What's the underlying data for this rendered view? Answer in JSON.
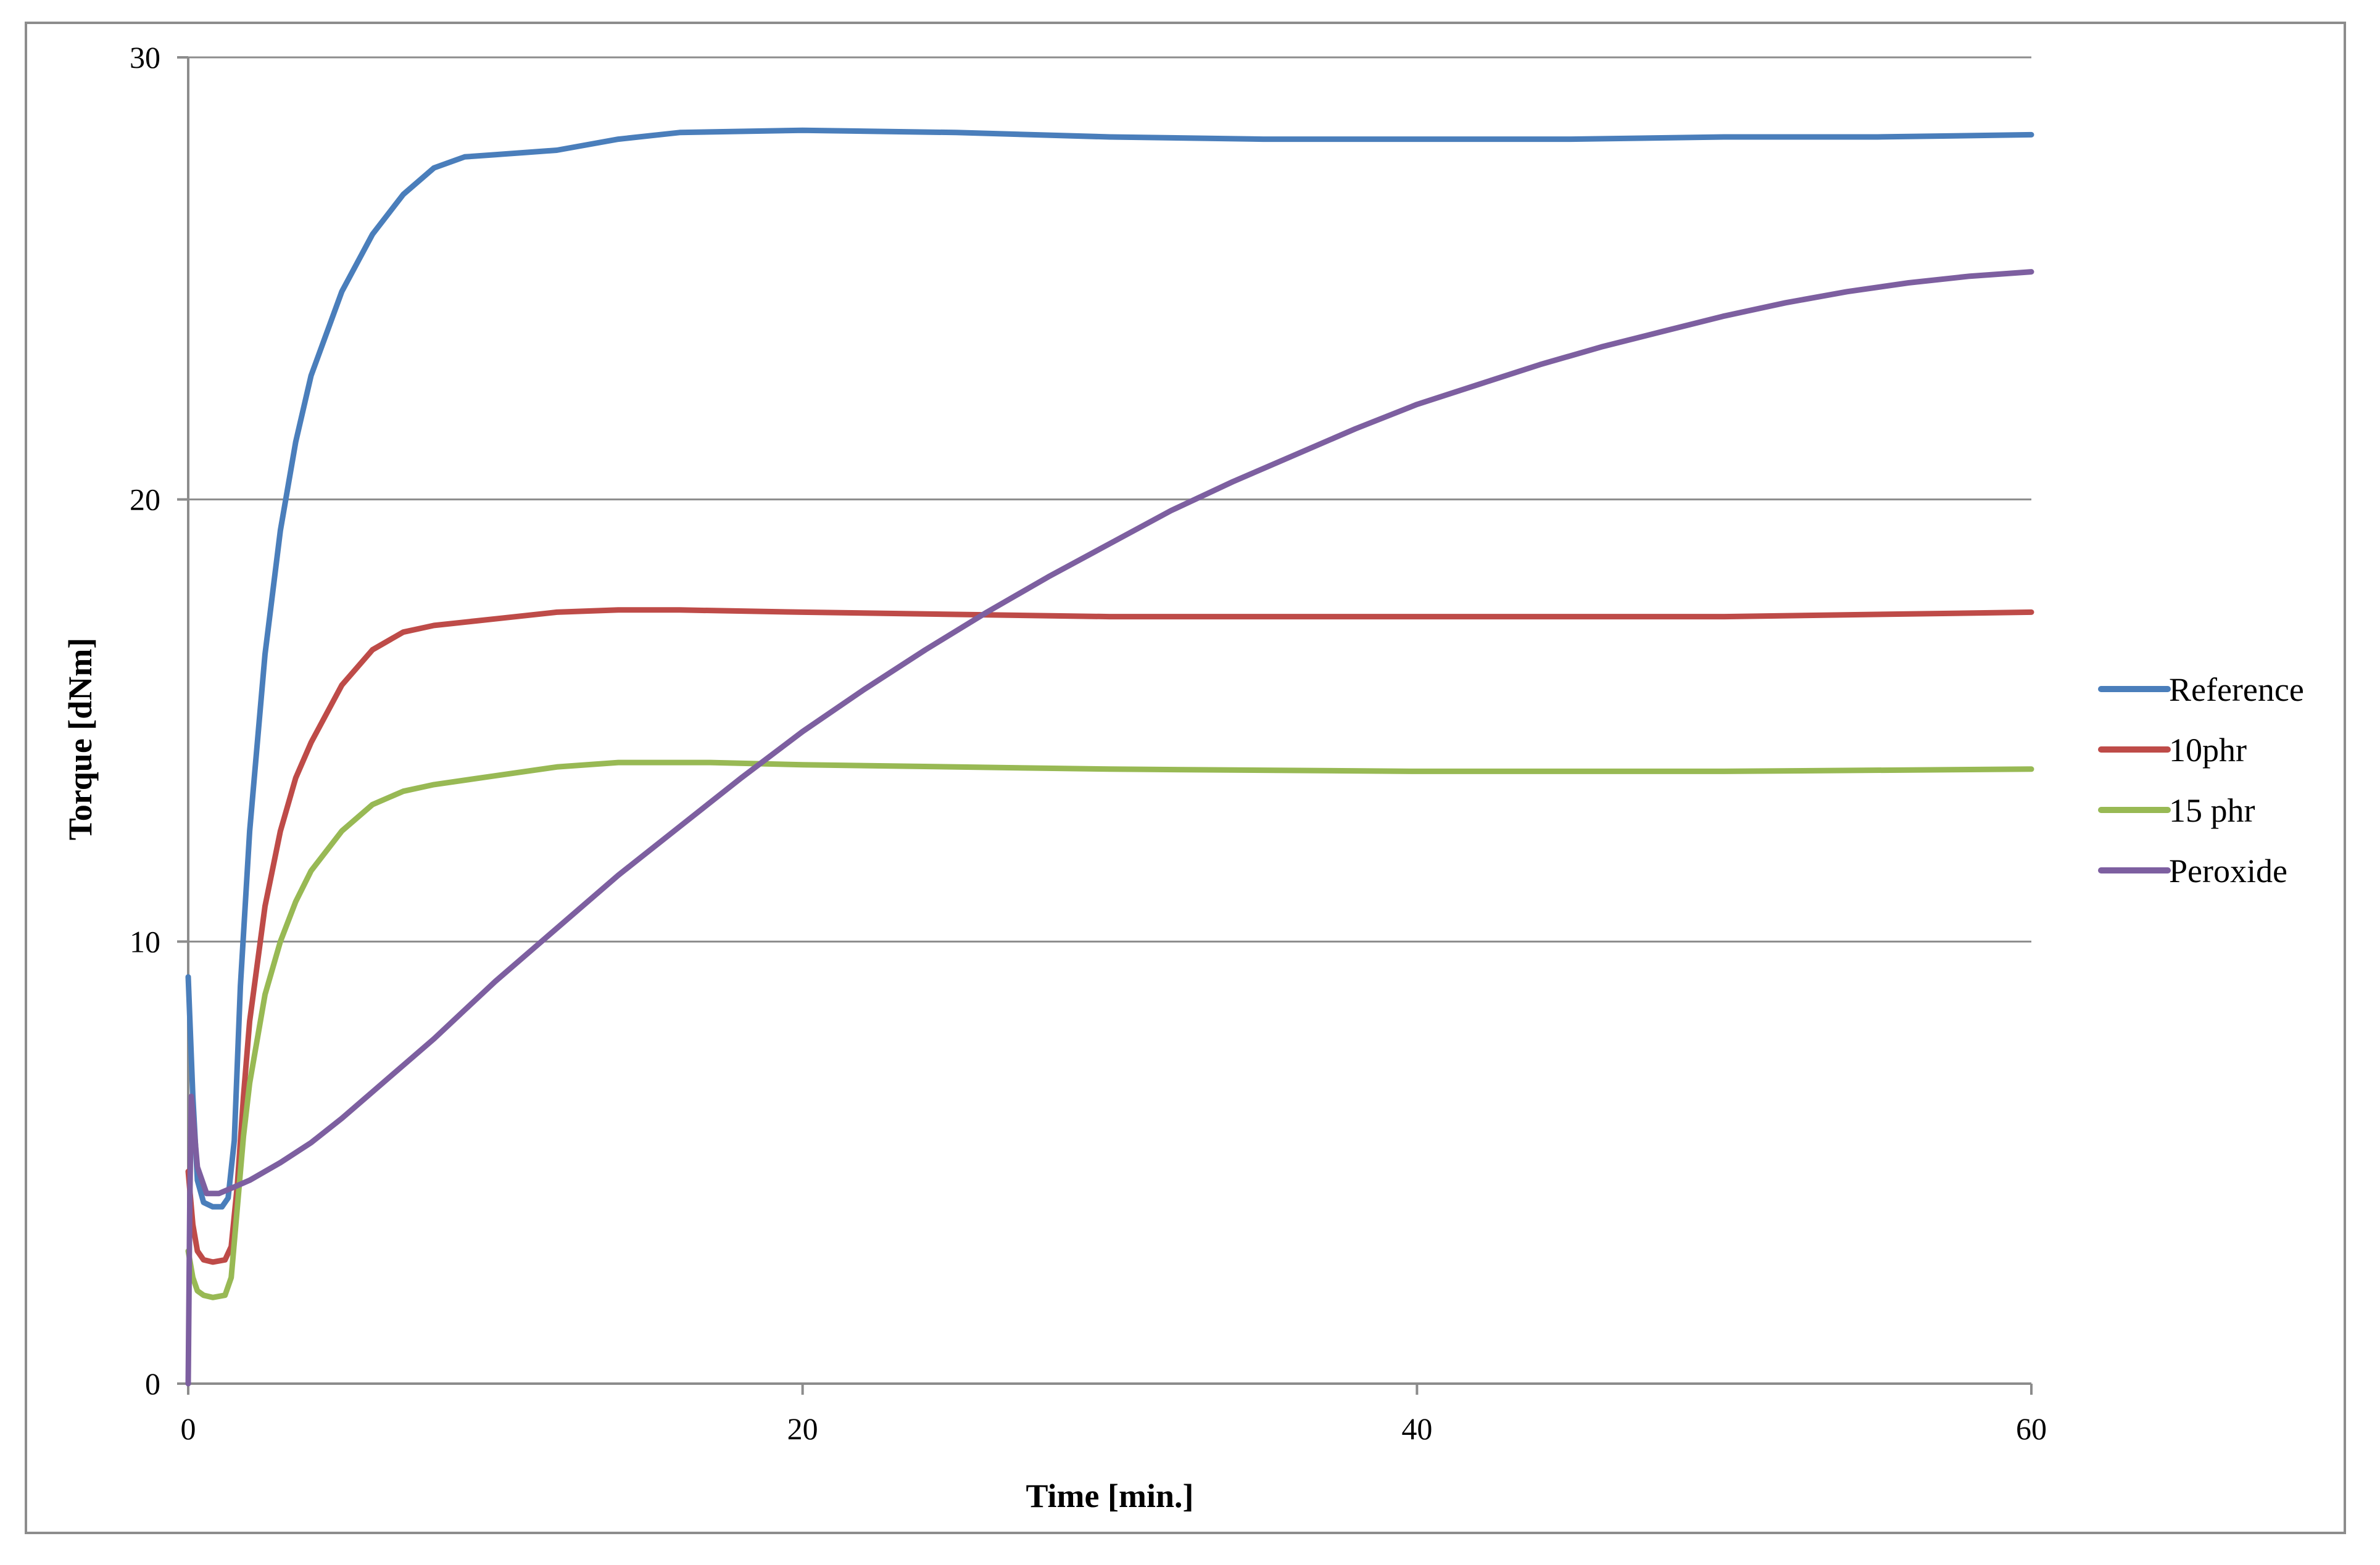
{
  "chart_data": {
    "type": "line",
    "xlabel": "Time [min.]",
    "ylabel": "Torque [dNm]",
    "xlim": [
      0,
      60
    ],
    "ylim": [
      0,
      30
    ],
    "x_ticks": [
      "0",
      "20",
      "40",
      "60"
    ],
    "y_ticks": [
      "0",
      "10",
      "20",
      "30"
    ],
    "grid": "horizontal major gridlines",
    "legend_position": "right",
    "series": [
      {
        "name": "Reference",
        "color": "#4a7ebb",
        "points": [
          [
            0,
            9.2
          ],
          [
            0.15,
            6.5
          ],
          [
            0.3,
            4.6
          ],
          [
            0.5,
            4.1
          ],
          [
            0.8,
            4.0
          ],
          [
            1.1,
            4.0
          ],
          [
            1.3,
            4.2
          ],
          [
            1.5,
            5.5
          ],
          [
            1.7,
            9
          ],
          [
            2,
            12.5
          ],
          [
            2.5,
            16.5
          ],
          [
            3,
            19.3
          ],
          [
            3.5,
            21.3
          ],
          [
            4,
            22.8
          ],
          [
            5,
            24.7
          ],
          [
            6,
            26
          ],
          [
            7,
            26.9
          ],
          [
            8,
            27.5
          ],
          [
            9,
            27.75
          ],
          [
            10,
            27.8
          ],
          [
            11,
            27.85
          ],
          [
            12,
            27.9
          ],
          [
            14,
            28.15
          ],
          [
            16,
            28.3
          ],
          [
            20,
            28.35
          ],
          [
            25,
            28.3
          ],
          [
            30,
            28.2
          ],
          [
            35,
            28.15
          ],
          [
            40,
            28.15
          ],
          [
            45,
            28.15
          ],
          [
            50,
            28.2
          ],
          [
            55,
            28.2
          ],
          [
            60,
            28.25
          ]
        ]
      },
      {
        "name": "10phr",
        "color": "#be4b48",
        "points": [
          [
            0,
            4.8
          ],
          [
            0.15,
            3.6
          ],
          [
            0.3,
            3.0
          ],
          [
            0.5,
            2.8
          ],
          [
            0.8,
            2.75
          ],
          [
            1.2,
            2.8
          ],
          [
            1.4,
            3.1
          ],
          [
            1.6,
            4.5
          ],
          [
            1.8,
            6.5
          ],
          [
            2,
            8.2
          ],
          [
            2.5,
            10.8
          ],
          [
            3,
            12.5
          ],
          [
            3.5,
            13.7
          ],
          [
            4,
            14.5
          ],
          [
            5,
            15.8
          ],
          [
            6,
            16.6
          ],
          [
            7,
            17.0
          ],
          [
            8,
            17.15
          ],
          [
            10,
            17.3
          ],
          [
            12,
            17.45
          ],
          [
            14,
            17.5
          ],
          [
            16,
            17.5
          ],
          [
            20,
            17.45
          ],
          [
            25,
            17.4
          ],
          [
            30,
            17.35
          ],
          [
            40,
            17.35
          ],
          [
            50,
            17.35
          ],
          [
            60,
            17.45
          ]
        ]
      },
      {
        "name": "15 phr",
        "color": "#98b954",
        "points": [
          [
            0,
            3.0
          ],
          [
            0.15,
            2.4
          ],
          [
            0.3,
            2.1
          ],
          [
            0.5,
            2.0
          ],
          [
            0.8,
            1.95
          ],
          [
            1.2,
            2.0
          ],
          [
            1.4,
            2.4
          ],
          [
            1.6,
            4.0
          ],
          [
            1.8,
            5.6
          ],
          [
            2,
            6.8
          ],
          [
            2.5,
            8.8
          ],
          [
            3,
            10.0
          ],
          [
            3.5,
            10.9
          ],
          [
            4,
            11.6
          ],
          [
            5,
            12.5
          ],
          [
            6,
            13.1
          ],
          [
            7,
            13.4
          ],
          [
            8,
            13.55
          ],
          [
            10,
            13.75
          ],
          [
            12,
            13.95
          ],
          [
            14,
            14.05
          ],
          [
            17,
            14.05
          ],
          [
            20,
            14.0
          ],
          [
            30,
            13.9
          ],
          [
            40,
            13.85
          ],
          [
            50,
            13.85
          ],
          [
            60,
            13.9
          ]
        ]
      },
      {
        "name": "Peroxide",
        "color": "#7d5fa0",
        "points": [
          [
            0,
            0
          ],
          [
            0.05,
            4
          ],
          [
            0.1,
            6.5
          ],
          [
            0.3,
            4.9
          ],
          [
            0.6,
            4.3
          ],
          [
            1,
            4.3
          ],
          [
            1.5,
            4.45
          ],
          [
            2,
            4.6
          ],
          [
            3,
            5.0
          ],
          [
            4,
            5.45
          ],
          [
            5,
            6.0
          ],
          [
            6,
            6.6
          ],
          [
            7,
            7.2
          ],
          [
            8,
            7.8
          ],
          [
            9,
            8.45
          ],
          [
            10,
            9.1
          ],
          [
            12,
            10.3
          ],
          [
            14,
            11.5
          ],
          [
            16,
            12.6
          ],
          [
            18,
            13.7
          ],
          [
            20,
            14.75
          ],
          [
            22,
            15.7
          ],
          [
            24,
            16.6
          ],
          [
            26,
            17.45
          ],
          [
            28,
            18.25
          ],
          [
            30,
            19.0
          ],
          [
            32,
            19.75
          ],
          [
            34,
            20.4
          ],
          [
            36,
            21.0
          ],
          [
            38,
            21.6
          ],
          [
            40,
            22.15
          ],
          [
            42,
            22.6
          ],
          [
            44,
            23.05
          ],
          [
            46,
            23.45
          ],
          [
            48,
            23.8
          ],
          [
            50,
            24.15
          ],
          [
            52,
            24.45
          ],
          [
            54,
            24.7
          ],
          [
            56,
            24.9
          ],
          [
            58,
            25.05
          ],
          [
            60,
            25.15
          ]
        ]
      }
    ]
  }
}
